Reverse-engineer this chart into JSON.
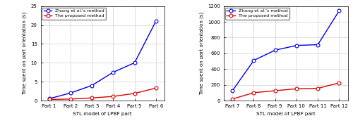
{
  "left": {
    "x_labels": [
      "Part 1",
      "Part 2",
      "Part 3",
      "Part 4",
      "Part 5",
      "Part 6"
    ],
    "zhang_y": [
      0.5,
      2.0,
      4.0,
      7.5,
      10.0,
      21.0
    ],
    "proposed_y": [
      0.3,
      0.4,
      0.7,
      1.1,
      1.9,
      3.3
    ],
    "ylim": [
      0,
      25
    ],
    "yticks": [
      0,
      5,
      10,
      15,
      20,
      25
    ],
    "ylabel": "Time spent on part orientation (s)",
    "xlabel": "STL model of LPBF part"
  },
  "right": {
    "x_labels": [
      "Part 7",
      "Part 8",
      "Part 9",
      "Part 10",
      "Part 11",
      "Part 12"
    ],
    "zhang_y": [
      125,
      510,
      640,
      700,
      710,
      1140
    ],
    "proposed_y": [
      20,
      100,
      125,
      150,
      155,
      225
    ],
    "ylim": [
      0,
      1200
    ],
    "yticks": [
      0,
      200,
      400,
      600,
      800,
      1000,
      1200
    ],
    "ylabel": "Time spent on part orientation (s)",
    "xlabel": "STL model of LPBF part"
  },
  "zhang_color": "#0000ee",
  "proposed_color": "#dd0000",
  "zhang_label": "Zhang et al.'s method",
  "proposed_label": "The proposed method",
  "marker": "o",
  "linewidth": 1.0,
  "markersize": 3.5,
  "grid_color": "#d0d0d0",
  "background_color": "#ffffff",
  "axes_color": "#ffffff"
}
